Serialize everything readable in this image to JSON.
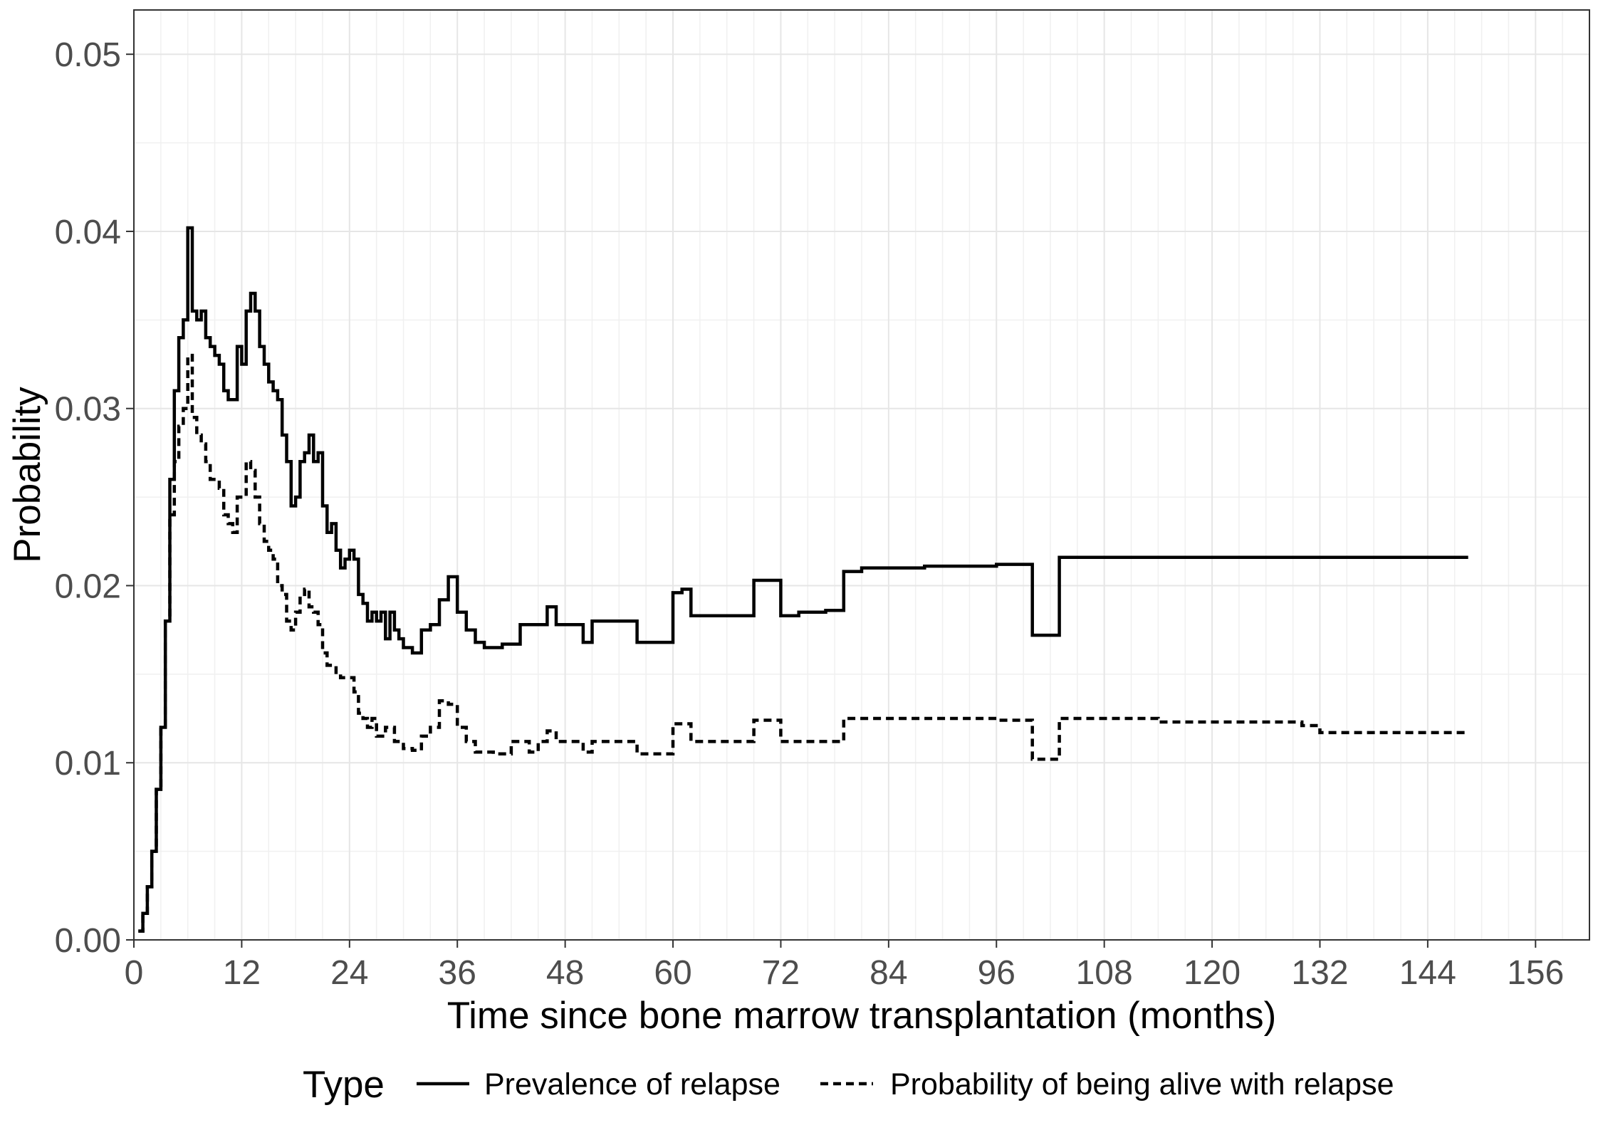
{
  "chart_data": {
    "type": "line",
    "title": "",
    "xlabel": "Time since bone marrow transplantation (months)",
    "ylabel": "Probability",
    "xlim": [
      0,
      162
    ],
    "ylim": [
      0,
      0.0525
    ],
    "x_ticks": [
      0,
      12,
      24,
      36,
      48,
      60,
      72,
      84,
      96,
      108,
      120,
      132,
      144,
      156
    ],
    "x_tick_labels": [
      "0",
      "12",
      "24",
      "36",
      "48",
      "60",
      "72",
      "84",
      "96",
      "108",
      "120",
      "132",
      "144",
      "156"
    ],
    "y_ticks": [
      0,
      0.01,
      0.02,
      0.03,
      0.04,
      0.05
    ],
    "y_tick_labels": [
      "0.00",
      "0.01",
      "0.02",
      "0.03",
      "0.04",
      "0.05"
    ],
    "grid": true,
    "legend": {
      "title": "Type",
      "position": "bottom"
    },
    "series": [
      {
        "name": "Prevalence of relapse",
        "line_style": "solid",
        "color": "#000000",
        "points": [
          [
            0.5,
            0.0005
          ],
          [
            1,
            0.0015
          ],
          [
            1.5,
            0.003
          ],
          [
            2,
            0.005
          ],
          [
            2.5,
            0.0085
          ],
          [
            3,
            0.012
          ],
          [
            3.5,
            0.018
          ],
          [
            4,
            0.026
          ],
          [
            4.5,
            0.031
          ],
          [
            5,
            0.034
          ],
          [
            5.5,
            0.035
          ],
          [
            6,
            0.0402
          ],
          [
            6.5,
            0.0355
          ],
          [
            7,
            0.035
          ],
          [
            7.5,
            0.0355
          ],
          [
            8,
            0.034
          ],
          [
            8.5,
            0.0335
          ],
          [
            9,
            0.033
          ],
          [
            9.5,
            0.0325
          ],
          [
            10,
            0.031
          ],
          [
            10.5,
            0.0305
          ],
          [
            11,
            0.0305
          ],
          [
            11.5,
            0.0335
          ],
          [
            12,
            0.0325
          ],
          [
            12.5,
            0.0355
          ],
          [
            13,
            0.0365
          ],
          [
            13.5,
            0.0355
          ],
          [
            14,
            0.0335
          ],
          [
            14.5,
            0.0325
          ],
          [
            15,
            0.0315
          ],
          [
            15.5,
            0.031
          ],
          [
            16,
            0.0305
          ],
          [
            16.5,
            0.0285
          ],
          [
            17,
            0.027
          ],
          [
            17.5,
            0.0245
          ],
          [
            18,
            0.025
          ],
          [
            18.5,
            0.027
          ],
          [
            19,
            0.0275
          ],
          [
            19.5,
            0.0285
          ],
          [
            20,
            0.027
          ],
          [
            20.5,
            0.0275
          ],
          [
            21,
            0.0245
          ],
          [
            21.5,
            0.023
          ],
          [
            22,
            0.0235
          ],
          [
            22.5,
            0.022
          ],
          [
            23,
            0.021
          ],
          [
            23.5,
            0.0215
          ],
          [
            24,
            0.022
          ],
          [
            24.5,
            0.0215
          ],
          [
            25,
            0.0195
          ],
          [
            25.5,
            0.019
          ],
          [
            26,
            0.018
          ],
          [
            26.5,
            0.0185
          ],
          [
            27,
            0.018
          ],
          [
            27.5,
            0.0185
          ],
          [
            28,
            0.017
          ],
          [
            28.5,
            0.0185
          ],
          [
            29,
            0.0175
          ],
          [
            29.5,
            0.017
          ],
          [
            30,
            0.0165
          ],
          [
            31,
            0.0162
          ],
          [
            32,
            0.0175
          ],
          [
            33,
            0.0178
          ],
          [
            34,
            0.0192
          ],
          [
            35,
            0.0205
          ],
          [
            36,
            0.0185
          ],
          [
            37,
            0.0175
          ],
          [
            38,
            0.0168
          ],
          [
            39,
            0.0165
          ],
          [
            41,
            0.0167
          ],
          [
            43,
            0.0178
          ],
          [
            45,
            0.0178
          ],
          [
            46,
            0.0188
          ],
          [
            47,
            0.0178
          ],
          [
            49,
            0.0178
          ],
          [
            50,
            0.0168
          ],
          [
            51,
            0.018
          ],
          [
            53,
            0.018
          ],
          [
            55,
            0.018
          ],
          [
            56,
            0.0168
          ],
          [
            58,
            0.0168
          ],
          [
            59,
            0.0168
          ],
          [
            60,
            0.0196
          ],
          [
            61,
            0.0198
          ],
          [
            62,
            0.0183
          ],
          [
            64,
            0.0183
          ],
          [
            66,
            0.0183
          ],
          [
            68,
            0.0183
          ],
          [
            69,
            0.0203
          ],
          [
            71,
            0.0203
          ],
          [
            72,
            0.0183
          ],
          [
            74,
            0.0185
          ],
          [
            77,
            0.0186
          ],
          [
            79,
            0.0208
          ],
          [
            81,
            0.021
          ],
          [
            84,
            0.021
          ],
          [
            88,
            0.0211
          ],
          [
            92,
            0.0211
          ],
          [
            96,
            0.0212
          ],
          [
            99,
            0.0212
          ],
          [
            100,
            0.0172
          ],
          [
            103,
            0.0216
          ],
          [
            108,
            0.0216
          ],
          [
            120,
            0.0216
          ],
          [
            132,
            0.0216
          ],
          [
            144,
            0.0216
          ],
          [
            148.5,
            0.0216
          ]
        ]
      },
      {
        "name": "Probability of being alive with relapse",
        "line_style": "dashed",
        "color": "#000000",
        "points": [
          [
            0.5,
            0.0005
          ],
          [
            1,
            0.0015
          ],
          [
            1.5,
            0.003
          ],
          [
            2,
            0.005
          ],
          [
            2.5,
            0.0085
          ],
          [
            3,
            0.012
          ],
          [
            3.5,
            0.018
          ],
          [
            4,
            0.024
          ],
          [
            4.5,
            0.027
          ],
          [
            5,
            0.029
          ],
          [
            5.5,
            0.03
          ],
          [
            6,
            0.033
          ],
          [
            6.5,
            0.0295
          ],
          [
            7,
            0.0285
          ],
          [
            7.5,
            0.028
          ],
          [
            8,
            0.027
          ],
          [
            8.5,
            0.026
          ],
          [
            9,
            0.026
          ],
          [
            9.5,
            0.0255
          ],
          [
            10,
            0.024
          ],
          [
            10.5,
            0.0235
          ],
          [
            11,
            0.023
          ],
          [
            11.5,
            0.025
          ],
          [
            12,
            0.025
          ],
          [
            12.5,
            0.027
          ],
          [
            13,
            0.0265
          ],
          [
            13.5,
            0.025
          ],
          [
            14,
            0.0235
          ],
          [
            14.5,
            0.0225
          ],
          [
            15,
            0.022
          ],
          [
            15.5,
            0.0215
          ],
          [
            16,
            0.02
          ],
          [
            16.5,
            0.0195
          ],
          [
            17,
            0.018
          ],
          [
            17.5,
            0.0175
          ],
          [
            18,
            0.0185
          ],
          [
            18.5,
            0.0195
          ],
          [
            19,
            0.0198
          ],
          [
            19.5,
            0.0188
          ],
          [
            20,
            0.0185
          ],
          [
            20.5,
            0.0178
          ],
          [
            21,
            0.0162
          ],
          [
            21.5,
            0.0155
          ],
          [
            22,
            0.0155
          ],
          [
            22.5,
            0.015
          ],
          [
            23,
            0.0148
          ],
          [
            23.5,
            0.0148
          ],
          [
            24,
            0.0148
          ],
          [
            24.5,
            0.014
          ],
          [
            25,
            0.0128
          ],
          [
            25.5,
            0.0125
          ],
          [
            26,
            0.012
          ],
          [
            26.5,
            0.0125
          ],
          [
            27,
            0.0115
          ],
          [
            28,
            0.012
          ],
          [
            29,
            0.0112
          ],
          [
            30,
            0.0108
          ],
          [
            31,
            0.0107
          ],
          [
            32,
            0.0115
          ],
          [
            33,
            0.012
          ],
          [
            34,
            0.0135
          ],
          [
            35,
            0.0133
          ],
          [
            36,
            0.012
          ],
          [
            37,
            0.0112
          ],
          [
            38,
            0.0106
          ],
          [
            40,
            0.0105
          ],
          [
            42,
            0.0112
          ],
          [
            44,
            0.0106
          ],
          [
            45,
            0.0112
          ],
          [
            46,
            0.0118
          ],
          [
            47,
            0.0112
          ],
          [
            49,
            0.0112
          ],
          [
            50,
            0.0106
          ],
          [
            51,
            0.0112
          ],
          [
            53,
            0.0112
          ],
          [
            55,
            0.0112
          ],
          [
            56,
            0.0105
          ],
          [
            58,
            0.0105
          ],
          [
            59,
            0.0105
          ],
          [
            60,
            0.0122
          ],
          [
            61,
            0.0122
          ],
          [
            62,
            0.0112
          ],
          [
            64,
            0.0112
          ],
          [
            66,
            0.0112
          ],
          [
            68,
            0.0112
          ],
          [
            69,
            0.0124
          ],
          [
            71,
            0.0124
          ],
          [
            72,
            0.0112
          ],
          [
            74,
            0.0112
          ],
          [
            77,
            0.0112
          ],
          [
            79,
            0.0125
          ],
          [
            84,
            0.0125
          ],
          [
            90,
            0.0125
          ],
          [
            96,
            0.0124
          ],
          [
            99,
            0.0124
          ],
          [
            100,
            0.0102
          ],
          [
            103,
            0.0125
          ],
          [
            108,
            0.0125
          ],
          [
            114,
            0.0123
          ],
          [
            120,
            0.0123
          ],
          [
            126,
            0.0123
          ],
          [
            130,
            0.0121
          ],
          [
            132,
            0.0117
          ],
          [
            138,
            0.0117
          ],
          [
            144,
            0.0117
          ],
          [
            148.5,
            0.0117
          ]
        ]
      }
    ]
  }
}
